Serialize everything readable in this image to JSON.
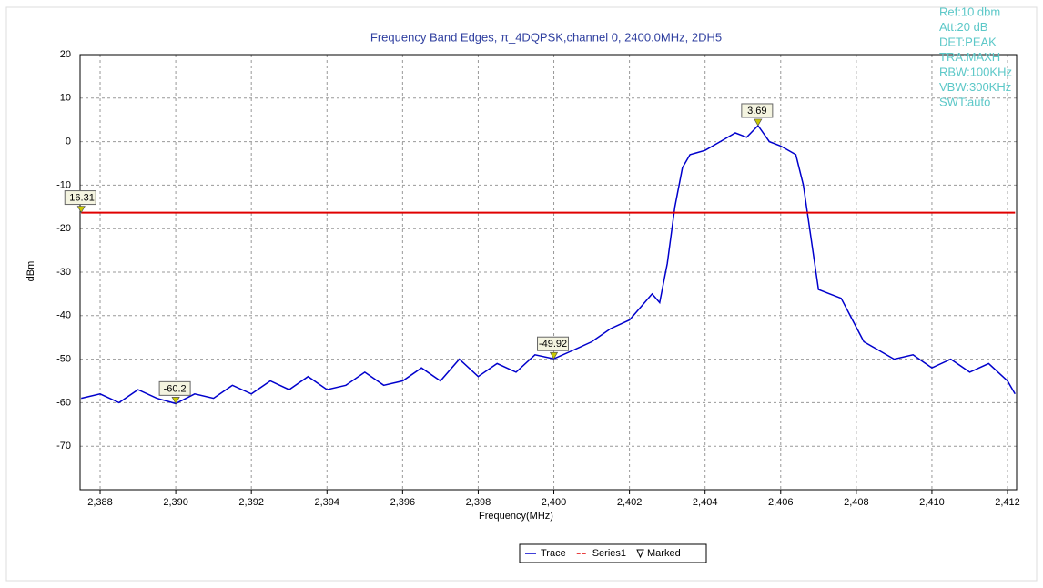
{
  "chart_data": {
    "type": "line",
    "title": "Frequency Band Edges, π_4DQPSK,channel 0, 2400.0MHz, 2DH5",
    "xlabel": "Frequency(MHz)",
    "ylabel": "dBm",
    "info": [
      "Ref:10 dbm",
      "Att:20 dB",
      "DET:PEAK",
      "TRA:MAXH",
      "RBW:100KHz",
      "VBW:300KHz",
      "SWT:auto"
    ],
    "xlim": [
      2387.47,
      2412.24
    ],
    "ylim": [
      -80,
      20
    ],
    "xticks": [
      {
        "value": 2388,
        "label": "2,388"
      },
      {
        "value": 2390,
        "label": "2,390"
      },
      {
        "value": 2392,
        "label": "2,392"
      },
      {
        "value": 2394,
        "label": "2,394"
      },
      {
        "value": 2396,
        "label": "2,396"
      },
      {
        "value": 2398,
        "label": "2,398"
      },
      {
        "value": 2400,
        "label": "2,400"
      },
      {
        "value": 2402,
        "label": "2,402"
      },
      {
        "value": 2404,
        "label": "2,404"
      },
      {
        "value": 2406,
        "label": "2,406"
      },
      {
        "value": 2408,
        "label": "2,408"
      },
      {
        "value": 2410,
        "label": "2,410"
      },
      {
        "value": 2412,
        "label": "2,412"
      }
    ],
    "yticks": [
      20,
      10,
      0,
      -10,
      -20,
      -30,
      -40,
      -50,
      -60,
      -70
    ],
    "grid": true,
    "series": [
      {
        "name": "Trace",
        "color": "#0000cc",
        "x": [
          2387.5,
          2388,
          2388.5,
          2389,
          2389.5,
          2390,
          2390.5,
          2391,
          2391.5,
          2392,
          2392.5,
          2393,
          2393.5,
          2394,
          2394.5,
          2395,
          2395.5,
          2396,
          2396.5,
          2397,
          2397.5,
          2398,
          2398.5,
          2399,
          2399.5,
          2400,
          2400.5,
          2401,
          2401.5,
          2402,
          2402.3,
          2402.6,
          2402.8,
          2403,
          2403.2,
          2403.4,
          2403.6,
          2404,
          2404.4,
          2404.8,
          2405.1,
          2405.4,
          2405.7,
          2406,
          2406.4,
          2406.6,
          2406.8,
          2407,
          2407.3,
          2407.6,
          2407.9,
          2408.2,
          2408.6,
          2409,
          2409.5,
          2410,
          2410.5,
          2411,
          2411.5,
          2412,
          2412.2
        ],
        "values": [
          -59,
          -58,
          -60,
          -57,
          -59,
          -60.2,
          -58,
          -59,
          -56,
          -58,
          -55,
          -57,
          -54,
          -57,
          -56,
          -53,
          -56,
          -55,
          -52,
          -55,
          -50,
          -54,
          -51,
          -53,
          -49,
          -49.92,
          -48,
          -46,
          -43,
          -41,
          -38,
          -35,
          -37,
          -28,
          -15,
          -6,
          -3,
          -2,
          0,
          2,
          1,
          3.69,
          0,
          -1,
          -3,
          -10,
          -22,
          -34,
          -35,
          -36,
          -41,
          -46,
          -48,
          -50,
          -49,
          -52,
          -50,
          -53,
          -51,
          -55,
          -58
        ]
      },
      {
        "name": "Series1",
        "color": "#e00000",
        "x": [
          2387.5,
          2412.2
        ],
        "values": [
          -16.31,
          -16.31
        ]
      },
      {
        "name": "Marked",
        "color": "#c8c800",
        "markers": true,
        "x": [
          2387.5,
          2390,
          2400,
          2405.4
        ],
        "values": [
          -16.31,
          -60.2,
          -49.92,
          3.69
        ]
      }
    ]
  }
}
